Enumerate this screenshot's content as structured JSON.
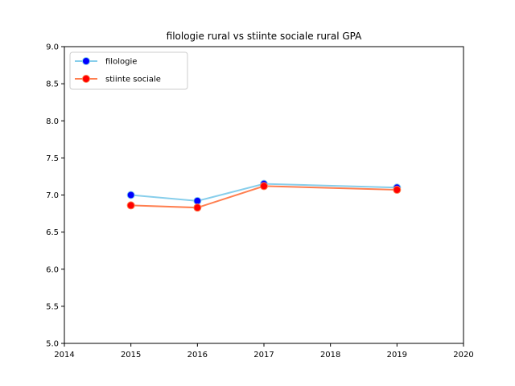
{
  "chart_data": {
    "type": "line",
    "title": "filologie rural vs stiinte sociale rural GPA",
    "xlabel": "",
    "ylabel": "",
    "xlim": [
      2014,
      2020
    ],
    "ylim": [
      5.0,
      9.0
    ],
    "x_ticks": [
      "2014",
      "2015",
      "2016",
      "2017",
      "2018",
      "2019",
      "2020"
    ],
    "y_ticks": [
      "5.0",
      "5.5",
      "6.0",
      "6.5",
      "7.0",
      "7.5",
      "8.0",
      "8.5",
      "9.0"
    ],
    "grid": false,
    "legend_position": "top-left",
    "series": [
      {
        "name": "filologie",
        "x": [
          2015,
          2016,
          2017,
          2019
        ],
        "y": [
          7.0,
          6.92,
          7.15,
          7.1
        ],
        "line_color": "#87ceeb",
        "marker_color": "#0000ff"
      },
      {
        "name": "stiinte sociale",
        "x": [
          2015,
          2016,
          2017,
          2019
        ],
        "y": [
          6.86,
          6.83,
          7.12,
          7.07
        ],
        "line_color": "#ff7f50",
        "marker_color": "#ff0000"
      }
    ]
  }
}
